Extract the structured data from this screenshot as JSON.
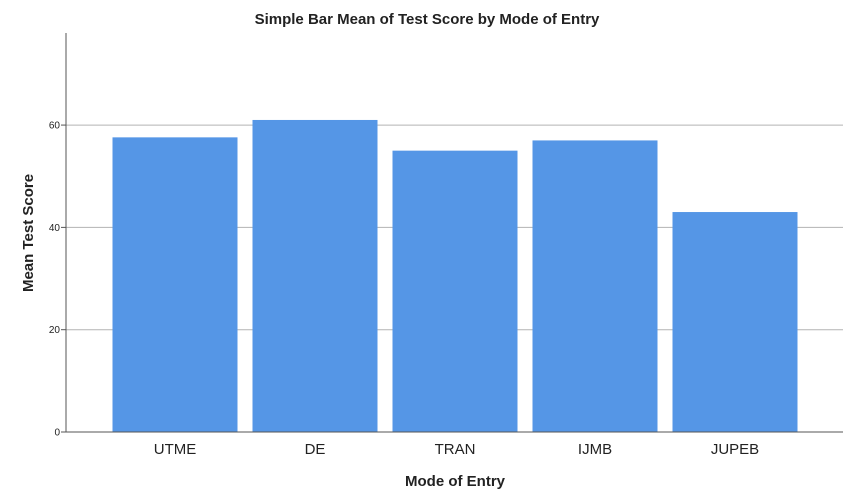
{
  "chart_data": {
    "type": "bar",
    "title": "Simple Bar Mean of Test Score by Mode  of Entry",
    "xlabel": "Mode  of Entry",
    "ylabel": "Mean Test Score",
    "categories": [
      "UTME",
      "DE",
      "TRAN",
      "IJMB",
      "JUPEB"
    ],
    "values": [
      57.6,
      61.0,
      55.0,
      57.0,
      43.0
    ],
    "ylim": [
      0,
      78
    ],
    "yticks": [
      0,
      20,
      40,
      60
    ],
    "ytick_labels": [
      "0",
      "20",
      "40",
      "60"
    ],
    "grid": true,
    "bar_color": "#5596e6",
    "grid_color": "#b3b3b3",
    "axis_color": "#555555"
  }
}
